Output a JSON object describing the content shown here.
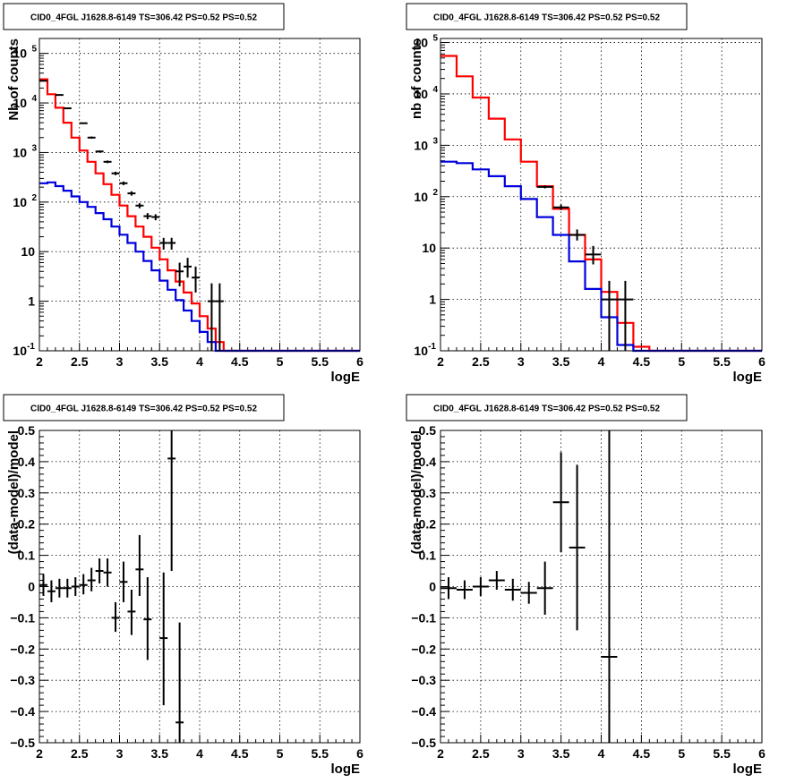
{
  "chart_data": [
    {
      "type": "line",
      "title": "CID0_4FGL J1628.8-6149 TS=306.42 PS=0.52 PS=0.52",
      "xlabel": "logE",
      "ylabel": "Nb of counts",
      "xlim": [
        2,
        6
      ],
      "ylim": [
        0.1,
        200000
      ],
      "log_y": true,
      "grid": true,
      "x_ticks": [
        "2",
        "2.5",
        "3",
        "3.5",
        "4",
        "4.5",
        "5",
        "5.5",
        "6"
      ],
      "y_ticks": [
        {
          "v": 0.1,
          "label": "10",
          "sup": "-1"
        },
        {
          "v": 1,
          "label": "1",
          "sup": ""
        },
        {
          "v": 10,
          "label": "10",
          "sup": ""
        },
        {
          "v": 100,
          "label": "10",
          "sup": "2"
        },
        {
          "v": 1000,
          "label": "10",
          "sup": "3"
        },
        {
          "v": 10000,
          "label": "10",
          "sup": "4"
        },
        {
          "v": 100000,
          "label": "10",
          "sup": "5"
        }
      ],
      "bin_edges": [
        2.0,
        2.1,
        2.2,
        2.3,
        2.4,
        2.5,
        2.6,
        2.7,
        2.8,
        2.9,
        3.0,
        3.1,
        3.2,
        3.3,
        3.4,
        3.5,
        3.6,
        3.7,
        3.8,
        3.9,
        4.0,
        4.1,
        4.2,
        4.3,
        4.4,
        4.5,
        4.6,
        4.7,
        4.8,
        4.9,
        5.0,
        5.1,
        5.2,
        5.3,
        5.4,
        5.5,
        5.6,
        5.7,
        5.8,
        5.9,
        6.0
      ],
      "series": [
        {
          "color": "#ff0000",
          "kind": "step",
          "values": [
            30000,
            15000,
            8000,
            4000,
            2000,
            1100,
            650,
            380,
            230,
            140,
            85,
            52,
            32,
            20,
            12,
            7,
            4.2,
            2.5,
            1.5,
            0.9,
            0.5,
            0.28,
            0.15,
            0.1,
            0.1,
            0.1,
            0.1,
            0.1,
            0.1,
            0.1,
            0.1,
            0.1,
            0.1,
            0.1,
            0.1,
            0.1,
            0.1,
            0.1,
            0.1,
            0.1
          ]
        },
        {
          "color": "#0000dd",
          "kind": "step",
          "values": [
            240,
            250,
            210,
            170,
            130,
            100,
            80,
            60,
            45,
            32,
            22,
            15,
            10,
            6.5,
            4.2,
            2.6,
            1.7,
            1.05,
            0.65,
            0.4,
            0.24,
            0.15,
            0.1,
            0.1,
            0.1,
            0.1,
            0.1,
            0.1,
            0.1,
            0.1,
            0.1,
            0.1,
            0.1,
            0.1,
            0.1,
            0.1,
            0.1,
            0.1,
            0.1,
            0.1
          ]
        },
        {
          "color": "#000000",
          "kind": "points",
          "points": [
            {
              "x": 2.05,
              "y": 28000,
              "xe": 0.05,
              "ylo": 27500,
              "yhi": 28500
            },
            {
              "x": 2.25,
              "y": 14500,
              "xe": 0.05,
              "ylo": 14200,
              "yhi": 14800
            },
            {
              "x": 2.35,
              "y": 7800,
              "xe": 0.05,
              "ylo": 7600,
              "yhi": 8000
            },
            {
              "x": 2.55,
              "y": 3900,
              "xe": 0.05,
              "ylo": 3800,
              "yhi": 4000
            },
            {
              "x": 2.65,
              "y": 2000,
              "xe": 0.05,
              "ylo": 1900,
              "yhi": 2100
            },
            {
              "x": 2.75,
              "y": 1050,
              "xe": 0.05,
              "ylo": 1000,
              "yhi": 1100
            },
            {
              "x": 2.85,
              "y": 650,
              "xe": 0.05,
              "ylo": 610,
              "yhi": 690
            },
            {
              "x": 2.95,
              "y": 380,
              "xe": 0.05,
              "ylo": 350,
              "yhi": 410
            },
            {
              "x": 3.05,
              "y": 240,
              "xe": 0.05,
              "ylo": 220,
              "yhi": 260
            },
            {
              "x": 3.15,
              "y": 150,
              "xe": 0.05,
              "ylo": 135,
              "yhi": 165
            },
            {
              "x": 3.25,
              "y": 85,
              "xe": 0.05,
              "ylo": 75,
              "yhi": 95
            },
            {
              "x": 3.35,
              "y": 52,
              "xe": 0.05,
              "ylo": 45,
              "yhi": 60
            },
            {
              "x": 3.45,
              "y": 50,
              "xe": 0.05,
              "ylo": 43,
              "yhi": 57
            },
            {
              "x": 3.55,
              "y": 15,
              "xe": 0.05,
              "ylo": 11,
              "yhi": 19
            },
            {
              "x": 3.65,
              "y": 15,
              "xe": 0.05,
              "ylo": 11,
              "yhi": 19
            },
            {
              "x": 3.75,
              "y": 4,
              "xe": 0.05,
              "ylo": 2,
              "yhi": 6
            },
            {
              "x": 3.85,
              "y": 5,
              "xe": 0.05,
              "ylo": 3,
              "yhi": 7.5
            },
            {
              "x": 3.95,
              "y": 3,
              "xe": 0.05,
              "ylo": 1.5,
              "yhi": 5
            },
            {
              "x": 4.15,
              "y": 1,
              "xe": 0.05,
              "ylo": 0.1,
              "yhi": 2.3
            },
            {
              "x": 4.25,
              "y": 1,
              "xe": 0.05,
              "ylo": 0.1,
              "yhi": 2.3
            }
          ]
        }
      ]
    },
    {
      "type": "line",
      "title": "CID0_4FGL J1628.8-6149 TS=306.42 PS=0.52 PS=0.52",
      "xlabel": "logE",
      "ylabel": "nb of counts",
      "xlim": [
        2,
        6
      ],
      "ylim": [
        0.1,
        120000
      ],
      "log_y": true,
      "grid": true,
      "x_ticks": [
        "2",
        "2.5",
        "3",
        "3.5",
        "4",
        "4.5",
        "5",
        "5.5",
        "6"
      ],
      "y_ticks": [
        {
          "v": 0.1,
          "label": "10",
          "sup": "-1"
        },
        {
          "v": 1,
          "label": "1",
          "sup": ""
        },
        {
          "v": 10,
          "label": "10",
          "sup": ""
        },
        {
          "v": 100,
          "label": "10",
          "sup": "2"
        },
        {
          "v": 1000,
          "label": "10",
          "sup": "3"
        },
        {
          "v": 10000,
          "label": "10",
          "sup": "4"
        },
        {
          "v": 100000,
          "label": "10",
          "sup": "5"
        }
      ],
      "bin_edges": [
        2.0,
        2.2,
        2.4,
        2.6,
        2.8,
        3.0,
        3.2,
        3.4,
        3.6,
        3.8,
        4.0,
        4.2,
        4.4,
        4.6,
        4.8,
        5.0,
        5.2,
        5.4,
        5.6,
        5.8,
        6.0
      ],
      "series": [
        {
          "color": "#ff0000",
          "kind": "step",
          "values": [
            55000,
            22000,
            8500,
            3300,
            1300,
            480,
            160,
            58,
            18,
            6,
            1.4,
            0.35,
            0.12,
            0.1,
            0.1,
            0.1,
            0.1,
            0.1,
            0.1,
            0.1
          ]
        },
        {
          "color": "#0000dd",
          "kind": "step",
          "values": [
            480,
            450,
            340,
            250,
            160,
            90,
            40,
            18,
            5.5,
            1.6,
            0.45,
            0.13,
            0.1,
            0.1,
            0.1,
            0.1,
            0.1,
            0.1,
            0.1,
            0.1
          ]
        },
        {
          "color": "#000000",
          "kind": "points",
          "points": [
            {
              "x": 3.3,
              "y": 155,
              "xe": 0.1,
              "ylo": 145,
              "yhi": 165
            },
            {
              "x": 3.5,
              "y": 62,
              "xe": 0.1,
              "ylo": 55,
              "yhi": 70
            },
            {
              "x": 3.7,
              "y": 18,
              "xe": 0.1,
              "ylo": 14,
              "yhi": 23
            },
            {
              "x": 3.9,
              "y": 7.5,
              "xe": 0.1,
              "ylo": 4.8,
              "yhi": 11
            },
            {
              "x": 4.1,
              "y": 1,
              "xe": 0.1,
              "ylo": 0.1,
              "yhi": 2.3
            },
            {
              "x": 4.3,
              "y": 1,
              "xe": 0.1,
              "ylo": 0.1,
              "yhi": 2.3
            }
          ]
        }
      ]
    },
    {
      "type": "scatter",
      "title": "CID0_4FGL J1628.8-6149 TS=306.42 PS=0.52 PS=0.52",
      "xlabel": "logE",
      "ylabel": "(data-model)/model",
      "xlim": [
        2,
        6
      ],
      "ylim": [
        -0.5,
        0.5
      ],
      "log_y": false,
      "grid": true,
      "x_ticks": [
        "2",
        "2.5",
        "3",
        "3.5",
        "4",
        "4.5",
        "5",
        "5.5",
        "6"
      ],
      "y_ticks": [
        {
          "v": -0.5,
          "label": "−0.5",
          "sup": ""
        },
        {
          "v": -0.4,
          "label": "−0.4",
          "sup": ""
        },
        {
          "v": -0.3,
          "label": "−0.3",
          "sup": ""
        },
        {
          "v": -0.2,
          "label": "−0.2",
          "sup": ""
        },
        {
          "v": -0.1,
          "label": "−0.1",
          "sup": ""
        },
        {
          "v": 0,
          "label": "0",
          "sup": ""
        },
        {
          "v": 0.1,
          "label": "0.1",
          "sup": ""
        },
        {
          "v": 0.2,
          "label": "0.2",
          "sup": ""
        },
        {
          "v": 0.3,
          "label": "0.3",
          "sup": ""
        },
        {
          "v": 0.4,
          "label": "0.4",
          "sup": ""
        },
        {
          "v": 0.5,
          "label": "0.5",
          "sup": ""
        }
      ],
      "series": [
        {
          "color": "#000000",
          "kind": "points",
          "points": [
            {
              "x": 2.05,
              "y": 0.005,
              "xe": 0.05,
              "ylo": -0.03,
              "yhi": 0.04
            },
            {
              "x": 2.15,
              "y": -0.015,
              "xe": 0.05,
              "ylo": -0.05,
              "yhi": 0.02
            },
            {
              "x": 2.25,
              "y": -0.005,
              "xe": 0.05,
              "ylo": -0.035,
              "yhi": 0.025
            },
            {
              "x": 2.35,
              "y": -0.005,
              "xe": 0.05,
              "ylo": -0.035,
              "yhi": 0.025
            },
            {
              "x": 2.45,
              "y": 0.0,
              "xe": 0.05,
              "ylo": -0.03,
              "yhi": 0.03
            },
            {
              "x": 2.55,
              "y": 0.005,
              "xe": 0.05,
              "ylo": -0.025,
              "yhi": 0.04
            },
            {
              "x": 2.65,
              "y": 0.02,
              "xe": 0.05,
              "ylo": -0.015,
              "yhi": 0.06
            },
            {
              "x": 2.75,
              "y": 0.05,
              "xe": 0.05,
              "ylo": 0.01,
              "yhi": 0.09
            },
            {
              "x": 2.85,
              "y": 0.045,
              "xe": 0.05,
              "ylo": 0.0,
              "yhi": 0.09
            },
            {
              "x": 2.95,
              "y": -0.1,
              "xe": 0.05,
              "ylo": -0.145,
              "yhi": -0.05
            },
            {
              "x": 3.05,
              "y": 0.015,
              "xe": 0.05,
              "ylo": -0.05,
              "yhi": 0.08
            },
            {
              "x": 3.15,
              "y": -0.08,
              "xe": 0.05,
              "ylo": -0.155,
              "yhi": -0.01
            },
            {
              "x": 3.25,
              "y": 0.055,
              "xe": 0.05,
              "ylo": -0.03,
              "yhi": 0.165
            },
            {
              "x": 3.35,
              "y": -0.105,
              "xe": 0.05,
              "ylo": -0.235,
              "yhi": 0.03
            },
            {
              "x": 3.55,
              "y": -0.165,
              "xe": 0.05,
              "ylo": -0.38,
              "yhi": 0.045
            },
            {
              "x": 3.65,
              "y": 0.41,
              "xe": 0.05,
              "ylo": 0.05,
              "yhi": 0.5
            },
            {
              "x": 3.75,
              "y": -0.435,
              "xe": 0.05,
              "ylo": -0.5,
              "yhi": -0.115
            }
          ]
        }
      ]
    },
    {
      "type": "scatter",
      "title": "CID0_4FGL J1628.8-6149 TS=306.42 PS=0.52 PS=0.52",
      "xlabel": "logE",
      "ylabel": "(data-model)/model",
      "xlim": [
        2,
        6
      ],
      "ylim": [
        -0.5,
        0.5
      ],
      "log_y": false,
      "grid": true,
      "x_ticks": [
        "2",
        "2.5",
        "3",
        "3.5",
        "4",
        "4.5",
        "5",
        "5.5",
        "6"
      ],
      "y_ticks": [
        {
          "v": -0.5,
          "label": "−0.5",
          "sup": ""
        },
        {
          "v": -0.4,
          "label": "−0.4",
          "sup": ""
        },
        {
          "v": -0.3,
          "label": "−0.3",
          "sup": ""
        },
        {
          "v": -0.2,
          "label": "−0.2",
          "sup": ""
        },
        {
          "v": -0.1,
          "label": "−0.1",
          "sup": ""
        },
        {
          "v": 0,
          "label": "0",
          "sup": ""
        },
        {
          "v": 0.1,
          "label": "0.1",
          "sup": ""
        },
        {
          "v": 0.2,
          "label": "0.2",
          "sup": ""
        },
        {
          "v": 0.3,
          "label": "0.3",
          "sup": ""
        },
        {
          "v": 0.4,
          "label": "0.4",
          "sup": ""
        },
        {
          "v": 0.5,
          "label": "0.5",
          "sup": ""
        }
      ],
      "series": [
        {
          "color": "#000000",
          "kind": "points",
          "points": [
            {
              "x": 2.1,
              "y": -0.005,
              "xe": 0.1,
              "ylo": -0.04,
              "yhi": 0.03
            },
            {
              "x": 2.3,
              "y": -0.01,
              "xe": 0.1,
              "ylo": -0.04,
              "yhi": 0.02
            },
            {
              "x": 2.5,
              "y": 0.0,
              "xe": 0.1,
              "ylo": -0.03,
              "yhi": 0.03
            },
            {
              "x": 2.7,
              "y": 0.02,
              "xe": 0.1,
              "ylo": -0.01,
              "yhi": 0.05
            },
            {
              "x": 2.9,
              "y": -0.01,
              "xe": 0.1,
              "ylo": -0.045,
              "yhi": 0.025
            },
            {
              "x": 3.1,
              "y": -0.02,
              "xe": 0.1,
              "ylo": -0.055,
              "yhi": 0.015
            },
            {
              "x": 3.3,
              "y": -0.005,
              "xe": 0.1,
              "ylo": -0.09,
              "yhi": 0.08
            },
            {
              "x": 3.5,
              "y": 0.27,
              "xe": 0.1,
              "ylo": 0.11,
              "yhi": 0.43
            },
            {
              "x": 3.7,
              "y": 0.125,
              "xe": 0.1,
              "ylo": -0.14,
              "yhi": 0.39
            },
            {
              "x": 4.1,
              "y": -0.225,
              "xe": 0.1,
              "ylo": -0.5,
              "yhi": 0.5
            }
          ]
        }
      ]
    }
  ]
}
